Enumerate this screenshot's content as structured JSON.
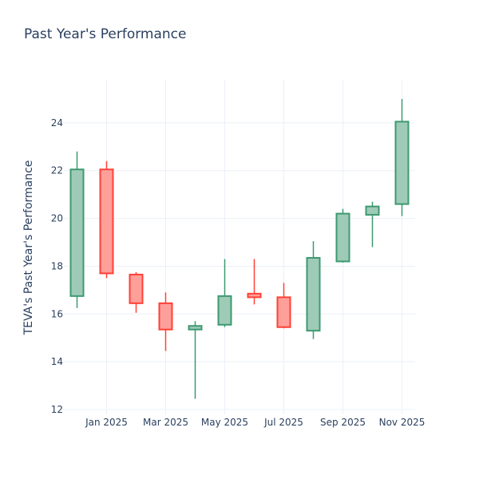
{
  "chart_data": {
    "type": "candlestick",
    "title": "Past Year's Performance",
    "xlabel": "",
    "ylabel": "TEVA's Past Year's Performance",
    "ylim": [
      11.8,
      25.8
    ],
    "yticks": [
      12,
      14,
      16,
      18,
      20,
      22,
      24
    ],
    "xticks": [
      {
        "label": "Jan 2025",
        "index": 1
      },
      {
        "label": "Mar 2025",
        "index": 3
      },
      {
        "label": "May 2025",
        "index": 5
      },
      {
        "label": "Jul 2025",
        "index": 7
      },
      {
        "label": "Sep 2025",
        "index": 9
      },
      {
        "label": "Nov 2025",
        "index": 11
      }
    ],
    "colors": {
      "increasing": "#3d9970",
      "increasing_fill": "#9ecbb7",
      "decreasing": "#ff4136",
      "decreasing_fill": "#ff9f9a"
    },
    "candles": [
      {
        "month": "Dec 2024",
        "open": 16.75,
        "high": 22.8,
        "low": 16.25,
        "close": 22.05
      },
      {
        "month": "Jan 2025",
        "open": 22.05,
        "high": 22.4,
        "low": 17.5,
        "close": 17.7
      },
      {
        "month": "Feb 2025",
        "open": 17.65,
        "high": 17.75,
        "low": 16.05,
        "close": 16.45
      },
      {
        "month": "Mar 2025",
        "open": 16.45,
        "high": 16.9,
        "low": 14.45,
        "close": 15.35
      },
      {
        "month": "Apr 2025",
        "open": 15.35,
        "high": 15.7,
        "low": 12.45,
        "close": 15.5
      },
      {
        "month": "May 2025",
        "open": 15.55,
        "high": 18.3,
        "low": 15.45,
        "close": 16.75
      },
      {
        "month": "Jun 2025",
        "open": 16.85,
        "high": 18.3,
        "low": 16.4,
        "close": 16.7
      },
      {
        "month": "Jul 2025",
        "open": 16.7,
        "high": 17.3,
        "low": 15.4,
        "close": 15.45
      },
      {
        "month": "Aug 2025",
        "open": 15.3,
        "high": 19.05,
        "low": 14.95,
        "close": 18.35
      },
      {
        "month": "Sep 2025",
        "open": 18.2,
        "high": 20.4,
        "low": 18.15,
        "close": 20.2
      },
      {
        "month": "Oct 2025",
        "open": 20.15,
        "high": 20.7,
        "low": 18.8,
        "close": 20.5
      },
      {
        "month": "Nov 2025",
        "open": 20.6,
        "high": 25.0,
        "low": 20.1,
        "close": 24.05
      }
    ]
  }
}
